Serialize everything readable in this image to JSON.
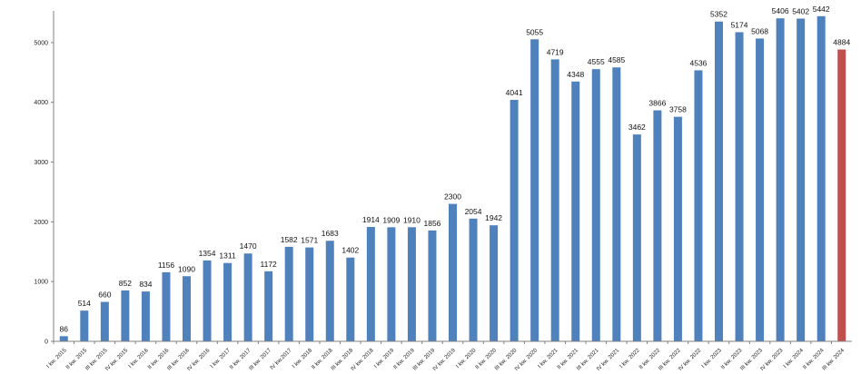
{
  "chart_data": {
    "type": "bar",
    "title": "",
    "xlabel": "",
    "ylabel": "",
    "ylim": [
      0,
      5500
    ],
    "yticks": [
      0,
      1000,
      2000,
      3000,
      4000,
      5000
    ],
    "grid": false,
    "legend": "none",
    "colors": {
      "default": "#4f81bd",
      "highlight": "#c0504d",
      "axis": "#808080"
    },
    "highlight_index": 38,
    "categories": [
      "I kw. 2015",
      "II kw. 2015",
      "III kw. 2015",
      "IV kw. 2015",
      "I kw. 2016",
      "II kw. 2016",
      "III kw. 2016",
      "IV kw. 2016",
      "I kw. 2017",
      "II kw. 2017",
      "III kw. 2017",
      "IV kw.2017",
      "I kw. 2018",
      "II kw. 2018",
      "III kw. 2018",
      "IV kw. 2018",
      "I kw. 2019",
      "II kw. 2019",
      "III kw. 2019",
      "IV kw. 2019",
      "I kw. 2020",
      "II kw. 2020",
      "III kw. 2020",
      "IV kw. 2020",
      "I kw. 2021",
      "II kw. 2021",
      "III kw. 2021",
      "IV kw. 2021",
      "I kw. 2022",
      "II kw. 2022",
      "III kw. 2022",
      "IV kw. 2022",
      "I kw. 2023",
      "II kw. 2023",
      "III kw. 2023",
      "IV kw. 2023",
      "I kw. 2024",
      "II kw. 2024",
      "III kw. 2024"
    ],
    "values": [
      86,
      514,
      660,
      852,
      834,
      1156,
      1090,
      1354,
      1311,
      1470,
      1172,
      1582,
      1571,
      1683,
      1402,
      1914,
      1909,
      1910,
      1856,
      2300,
      2054,
      1942,
      4041,
      5055,
      4719,
      4348,
      4555,
      4585,
      3462,
      3866,
      3758,
      4536,
      5352,
      5174,
      5068,
      5406,
      5402,
      5442,
      4884
    ]
  }
}
